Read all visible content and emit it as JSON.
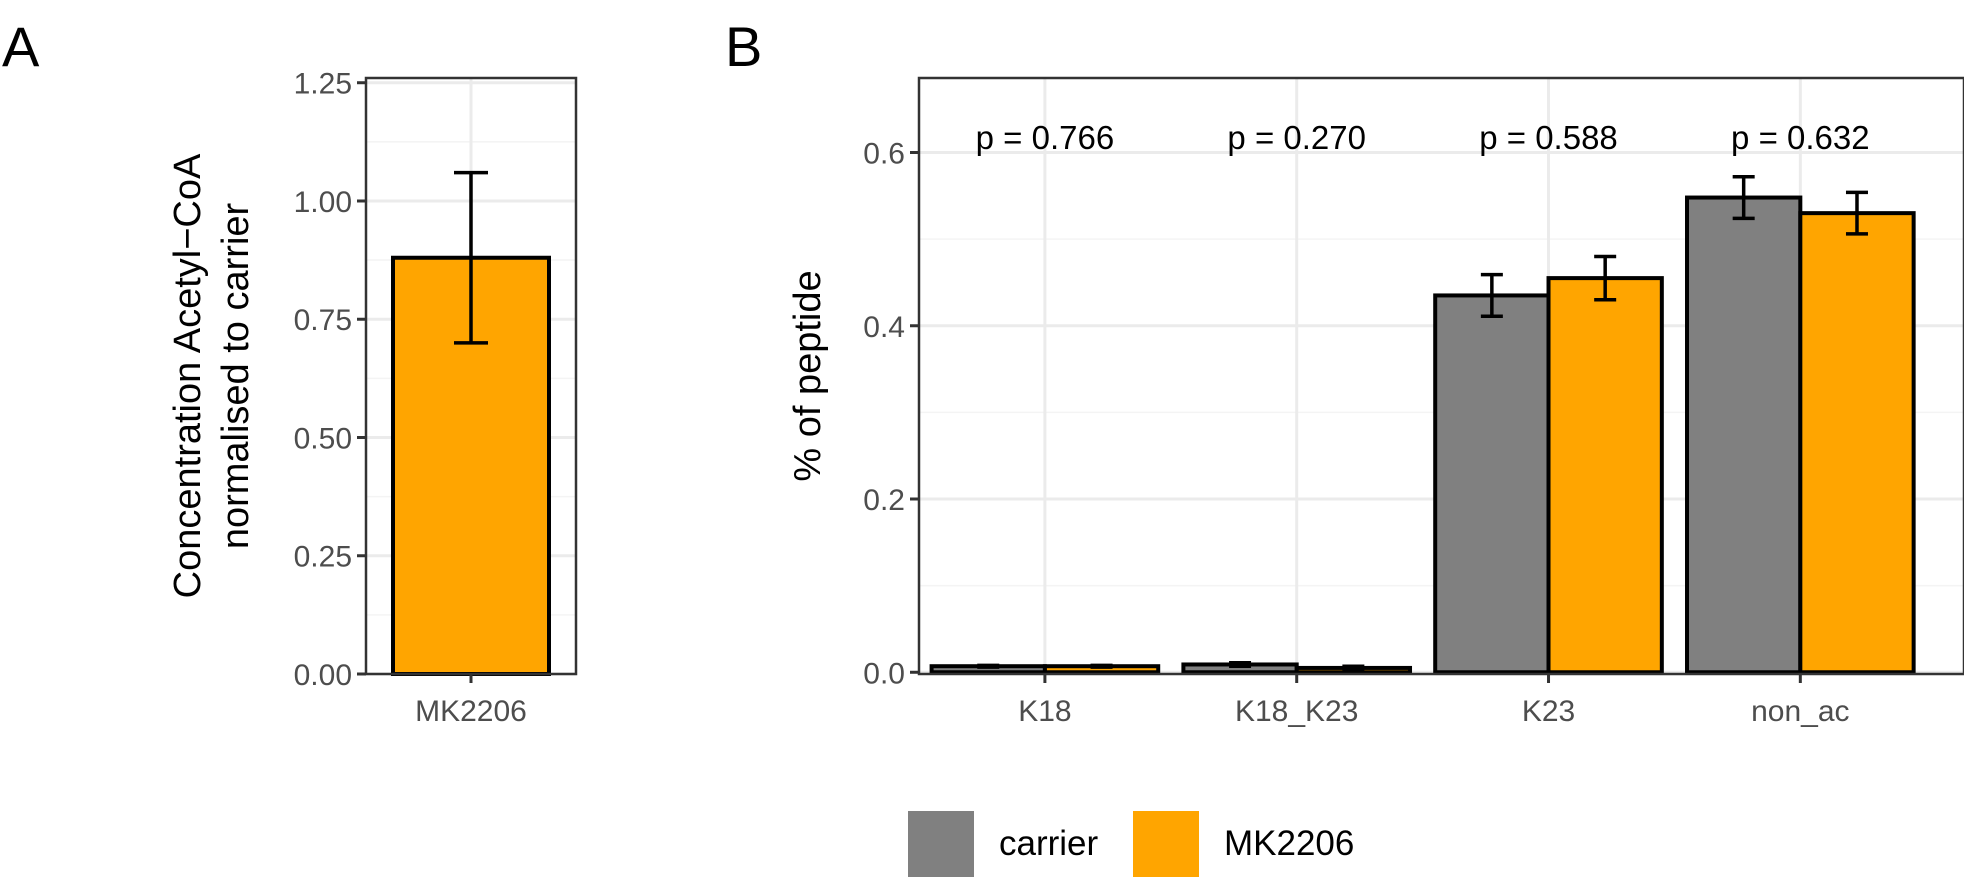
{
  "panels": {
    "a": {
      "label": "A"
    },
    "b": {
      "label": "B"
    }
  },
  "colors": {
    "carrier": "#808080",
    "MK2206": "#FFA500",
    "grid_major": "#EBEBEB",
    "grid_minor": "#F4F4F4",
    "axis_text": "#4D4D4D",
    "ink": "#000000"
  },
  "chart_data": [
    {
      "type": "bar",
      "panel": "A",
      "categories": [
        "MK2206"
      ],
      "values": [
        0.88
      ],
      "errors": [
        [
          0.7,
          1.06
        ]
      ],
      "ylabel": [
        "Concentration Acetyl−CoA",
        "normalised to carrier"
      ],
      "xlabel": "",
      "ylim": [
        0,
        1.26
      ],
      "yticks": [
        0,
        0.25,
        0.5,
        0.75,
        1.0,
        1.25
      ],
      "ytick_labels": [
        "0.00",
        "0.25",
        "0.50",
        "0.75",
        "1.00",
        "1.25"
      ],
      "bar_color": "#FFA500",
      "grid": true
    },
    {
      "type": "bar",
      "panel": "B",
      "categories": [
        "K18",
        "K18_K23",
        "K23",
        "non_ac"
      ],
      "series": [
        {
          "name": "carrier",
          "color": "#808080",
          "values": [
            0.007,
            0.009,
            0.435,
            0.548
          ],
          "errors": [
            [
              0.006,
              0.008
            ],
            [
              0.007,
              0.011
            ],
            [
              0.411,
              0.459
            ],
            [
              0.524,
              0.572
            ]
          ]
        },
        {
          "name": "MK2206",
          "color": "#FFA500",
          "values": [
            0.007,
            0.005,
            0.455,
            0.53
          ],
          "errors": [
            [
              0.006,
              0.008
            ],
            [
              0.004,
              0.007
            ],
            [
              0.43,
              0.48
            ],
            [
              0.506,
              0.554
            ]
          ]
        }
      ],
      "annotations": [
        "p = 0.766",
        "p = 0.270",
        "p = 0.588",
        "p = 0.632"
      ],
      "annotation_y": 0.617,
      "ylabel": "% of peptide",
      "xlabel": "",
      "ylim": [
        -0.002,
        0.686
      ],
      "yticks": [
        0,
        0.2,
        0.4,
        0.6
      ],
      "ytick_labels": [
        "0.0",
        "0.2",
        "0.4",
        "0.6"
      ],
      "grid": true,
      "legend": {
        "position": "bottom",
        "entries": [
          "carrier",
          "MK2206"
        ]
      }
    }
  ]
}
